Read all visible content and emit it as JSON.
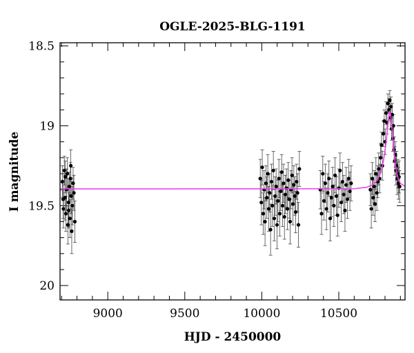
{
  "chart_data": {
    "type": "scatter",
    "title": "OGLE-2025-BLG-1191",
    "xlabel": "HJD - 2450000",
    "ylabel": "I magnitude",
    "xlim": [
      8690,
      10930
    ],
    "ylim": [
      20.09,
      18.48
    ],
    "y_inverted": true,
    "x_ticks": [
      9000,
      9500,
      10000,
      10500
    ],
    "x_tick_labels": [
      "9000",
      "9500",
      "10000",
      "10500"
    ],
    "y_ticks": [
      18.5,
      19,
      19.5,
      20
    ],
    "y_tick_labels": [
      "18.5",
      "19",
      "19.5",
      "20"
    ],
    "grid": false,
    "colors": {
      "points": "#000000",
      "model": "#ee44ee"
    },
    "series": [
      {
        "points": [
          [
            8705,
            19.35,
            0.1
          ],
          [
            8712,
            19.52,
            0.12
          ],
          [
            8718,
            19.28,
            0.09
          ],
          [
            8722,
            19.45,
            0.14
          ],
          [
            8728,
            19.55,
            0.11
          ],
          [
            8733,
            19.4,
            0.13
          ],
          [
            8737,
            19.3,
            0.1
          ],
          [
            8741,
            19.62,
            0.12
          ],
          [
            8745,
            19.48,
            0.15
          ],
          [
            8750,
            19.38,
            0.09
          ],
          [
            8754,
            19.58,
            0.12
          ],
          [
            8758,
            19.33,
            0.1
          ],
          [
            8762,
            19.44,
            0.11
          ],
          [
            8766,
            19.66,
            0.14
          ],
          [
            8770,
            19.5,
            0.12
          ],
          [
            8775,
            19.36,
            0.1
          ],
          [
            8780,
            19.42,
            0.11
          ],
          [
            8786,
            19.6,
            0.13
          ],
          [
            8710,
            19.46,
            0.12
          ],
          [
            8724,
            19.32,
            0.1
          ],
          [
            8746,
            19.53,
            0.11
          ],
          [
            8760,
            19.25,
            0.1
          ],
          [
            9990,
            19.33,
            0.12
          ],
          [
            9997,
            19.48,
            0.14
          ],
          [
            10003,
            19.26,
            0.11
          ],
          [
            10009,
            19.55,
            0.13
          ],
          [
            10015,
            19.4,
            0.12
          ],
          [
            10021,
            19.6,
            0.15
          ],
          [
            10027,
            19.36,
            0.11
          ],
          [
            10033,
            19.45,
            0.13
          ],
          [
            10039,
            19.3,
            0.12
          ],
          [
            10045,
            19.52,
            0.14
          ],
          [
            10051,
            19.42,
            0.12
          ],
          [
            10057,
            19.65,
            0.16
          ],
          [
            10063,
            19.35,
            0.11
          ],
          [
            10069,
            19.5,
            0.13
          ],
          [
            10075,
            19.28,
            0.12
          ],
          [
            10081,
            19.58,
            0.14
          ],
          [
            10087,
            19.44,
            0.12
          ],
          [
            10093,
            19.38,
            0.11
          ],
          [
            10099,
            19.62,
            0.15
          ],
          [
            10105,
            19.47,
            0.13
          ],
          [
            10111,
            19.33,
            0.12
          ],
          [
            10117,
            19.55,
            0.14
          ],
          [
            10123,
            19.41,
            0.12
          ],
          [
            10129,
            19.29,
            0.11
          ],
          [
            10135,
            19.5,
            0.13
          ],
          [
            10141,
            19.36,
            0.12
          ],
          [
            10147,
            19.57,
            0.14
          ],
          [
            10153,
            19.43,
            0.12
          ],
          [
            10160,
            19.39,
            0.12
          ],
          [
            10166,
            19.52,
            0.13
          ],
          [
            10172,
            19.34,
            0.11
          ],
          [
            10178,
            19.46,
            0.12
          ],
          [
            10184,
            19.6,
            0.14
          ],
          [
            10190,
            19.4,
            0.12
          ],
          [
            10196,
            19.31,
            0.11
          ],
          [
            10202,
            19.49,
            0.13
          ],
          [
            10208,
            19.37,
            0.12
          ],
          [
            10214,
            19.44,
            0.12
          ],
          [
            10220,
            19.54,
            0.13
          ],
          [
            10226,
            19.35,
            0.11
          ],
          [
            10232,
            19.42,
            0.12
          ],
          [
            10238,
            19.62,
            0.14
          ],
          [
            10244,
            19.27,
            0.11
          ],
          [
            10380,
            19.4,
            0.12
          ],
          [
            10388,
            19.55,
            0.13
          ],
          [
            10396,
            19.3,
            0.11
          ],
          [
            10404,
            19.47,
            0.12
          ],
          [
            10412,
            19.36,
            0.12
          ],
          [
            10420,
            19.52,
            0.13
          ],
          [
            10428,
            19.42,
            0.12
          ],
          [
            10436,
            19.33,
            0.11
          ],
          [
            10444,
            19.58,
            0.14
          ],
          [
            10452,
            19.45,
            0.12
          ],
          [
            10460,
            19.38,
            0.12
          ],
          [
            10468,
            19.5,
            0.13
          ],
          [
            10476,
            19.31,
            0.11
          ],
          [
            10484,
            19.44,
            0.12
          ],
          [
            10492,
            19.56,
            0.13
          ],
          [
            10500,
            19.39,
            0.12
          ],
          [
            10508,
            19.28,
            0.11
          ],
          [
            10516,
            19.48,
            0.12
          ],
          [
            10524,
            19.35,
            0.12
          ],
          [
            10532,
            19.43,
            0.12
          ],
          [
            10540,
            19.53,
            0.13
          ],
          [
            10548,
            19.37,
            0.11
          ],
          [
            10556,
            19.46,
            0.12
          ],
          [
            10564,
            19.33,
            0.12
          ],
          [
            10572,
            19.41,
            0.12
          ],
          [
            10580,
            19.36,
            0.11
          ],
          [
            10705,
            19.4,
            0.1
          ],
          [
            10711,
            19.52,
            0.12
          ],
          [
            10717,
            19.33,
            0.1
          ],
          [
            10723,
            19.45,
            0.11
          ],
          [
            10729,
            19.38,
            0.1
          ],
          [
            10735,
            19.49,
            0.11
          ],
          [
            10741,
            19.3,
            0.1
          ],
          [
            10747,
            19.42,
            0.11
          ],
          [
            10753,
            19.35,
            0.1
          ],
          [
            10759,
            19.27,
            0.1
          ],
          [
            10765,
            19.33,
            0.09
          ],
          [
            10771,
            19.2,
            0.09
          ],
          [
            10777,
            19.12,
            0.08
          ],
          [
            10783,
            19.25,
            0.09
          ],
          [
            10789,
            19.05,
            0.08
          ],
          [
            10795,
            18.97,
            0.07
          ],
          [
            10801,
            19.1,
            0.08
          ],
          [
            10807,
            18.92,
            0.07
          ],
          [
            10813,
            18.98,
            0.07
          ],
          [
            10819,
            18.86,
            0.06
          ],
          [
            10825,
            18.9,
            0.07
          ],
          [
            10831,
            18.84,
            0.06
          ],
          [
            10835,
            18.95,
            0.07
          ],
          [
            10839,
            18.88,
            0.06
          ],
          [
            10843,
            19.02,
            0.07
          ],
          [
            10847,
            18.93,
            0.07
          ],
          [
            10851,
            19.08,
            0.08
          ],
          [
            10855,
            19.0,
            0.07
          ],
          [
            10859,
            19.15,
            0.08
          ],
          [
            10863,
            19.22,
            0.09
          ],
          [
            10867,
            19.18,
            0.08
          ],
          [
            10871,
            19.28,
            0.09
          ],
          [
            10875,
            19.25,
            0.09
          ],
          [
            10879,
            19.33,
            0.1
          ],
          [
            10883,
            19.3,
            0.09
          ],
          [
            10887,
            19.36,
            0.1
          ],
          [
            10891,
            19.32,
            0.1
          ],
          [
            10895,
            19.38,
            0.1
          ]
        ]
      },
      {
        "model": true,
        "points": [
          [
            8690,
            19.395
          ],
          [
            10600,
            19.394
          ],
          [
            10680,
            19.385
          ],
          [
            10720,
            19.37
          ],
          [
            10750,
            19.34
          ],
          [
            10770,
            19.3
          ],
          [
            10790,
            19.22
          ],
          [
            10805,
            19.12
          ],
          [
            10815,
            19.03
          ],
          [
            10822,
            18.96
          ],
          [
            10828,
            18.92
          ],
          [
            10832,
            18.91
          ],
          [
            10836,
            18.93
          ],
          [
            10842,
            18.98
          ],
          [
            10850,
            19.07
          ],
          [
            10858,
            19.16
          ],
          [
            10866,
            19.23
          ],
          [
            10875,
            19.29
          ],
          [
            10885,
            19.33
          ],
          [
            10900,
            19.36
          ],
          [
            10930,
            19.38
          ]
        ]
      }
    ]
  }
}
